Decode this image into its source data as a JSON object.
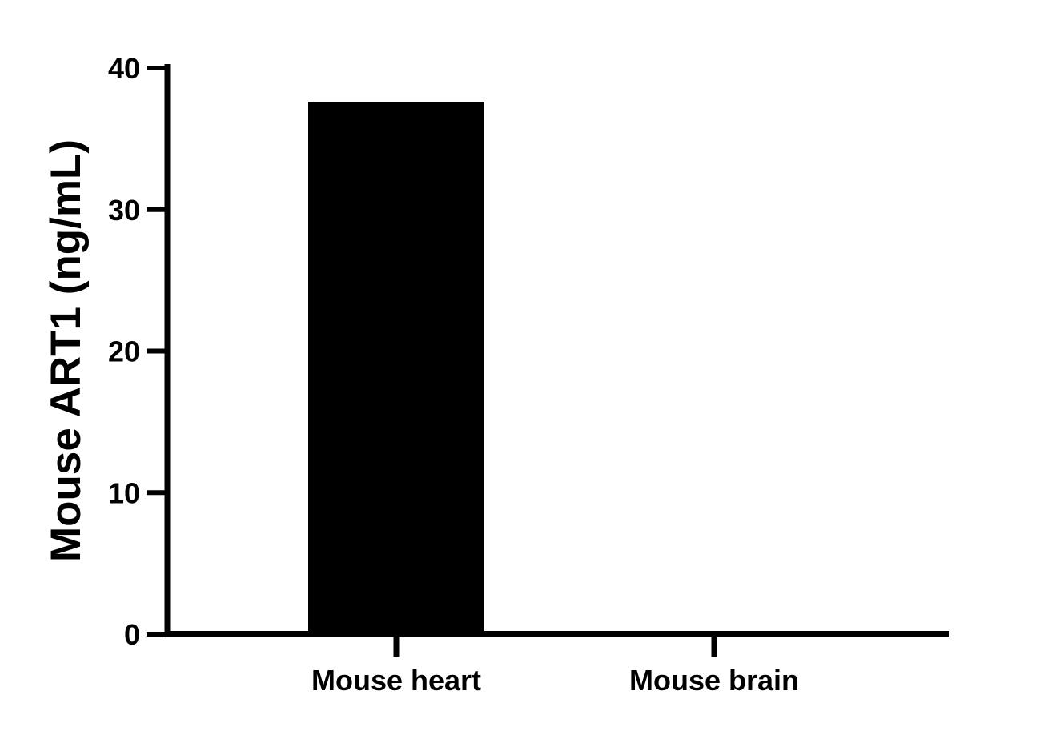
{
  "chart_data": {
    "type": "bar",
    "categories": [
      "Mouse heart",
      "Mouse brain"
    ],
    "values": [
      37.6,
      0
    ],
    "title": "",
    "xlabel": "",
    "ylabel": "Mouse ART1 (ng/mL)",
    "ylim": [
      0,
      40
    ],
    "yticks": [
      "0",
      "10",
      "20",
      "30",
      "40"
    ],
    "grid": false,
    "bar_color": "#000000"
  }
}
